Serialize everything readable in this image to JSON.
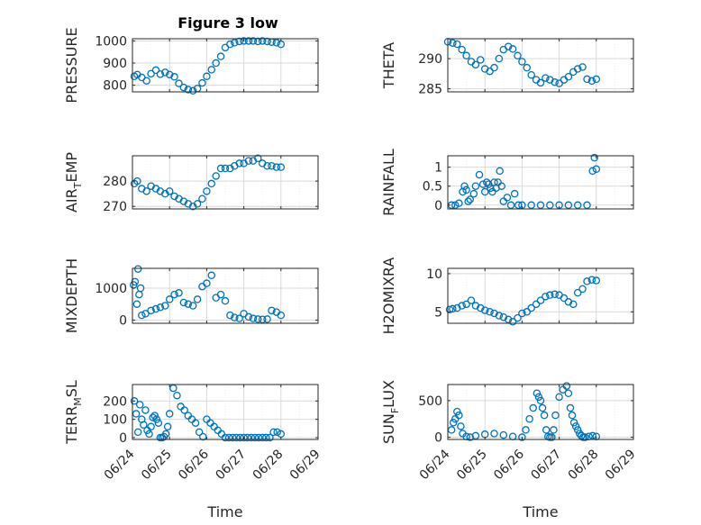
{
  "figure": {
    "title": "Figure 3 low",
    "xlabel": "Time",
    "xticks": [
      "06/24",
      "06/25",
      "06/26",
      "06/27",
      "06/28",
      "06/29"
    ],
    "marker_color": "#0072BD",
    "grid_color": "#d9d9d9"
  },
  "chart_data": [
    {
      "type": "scatter",
      "ylabel_main": "PRESSURE",
      "ylabel_sub": "",
      "yticks": [
        "800",
        "900",
        "1000"
      ],
      "ylim": [
        770,
        1010
      ],
      "yticks_values": [
        800,
        900,
        1000
      ],
      "x_range": [
        0,
        5
      ],
      "grid": true,
      "x": [
        0.05,
        0.13,
        0.25,
        0.38,
        0.5,
        0.63,
        0.75,
        0.88,
        1.0,
        1.13,
        1.25,
        1.38,
        1.5,
        1.63,
        1.75,
        1.88,
        2.0,
        2.13,
        2.25,
        2.38,
        2.5,
        2.63,
        2.75,
        2.88,
        3.0,
        3.13,
        3.25,
        3.38,
        3.5,
        3.63,
        3.75,
        3.88,
        4.0
      ],
      "y": [
        840,
        848,
        835,
        820,
        852,
        868,
        850,
        858,
        848,
        838,
        808,
        790,
        780,
        775,
        785,
        810,
        840,
        870,
        900,
        930,
        970,
        985,
        992,
        998,
        1000,
        1000,
        1000,
        998,
        1000,
        998,
        995,
        992,
        985
      ]
    },
    {
      "type": "scatter",
      "ylabel_main": "THETA",
      "ylabel_sub": "",
      "yticks": [
        "285",
        "290"
      ],
      "ylim": [
        284.5,
        293.3
      ],
      "yticks_values": [
        285,
        290
      ],
      "x_range": [
        0,
        5
      ],
      "grid": true,
      "x": [
        0.0,
        0.13,
        0.25,
        0.38,
        0.5,
        0.63,
        0.75,
        0.88,
        1.0,
        1.13,
        1.25,
        1.38,
        1.5,
        1.63,
        1.75,
        1.88,
        2.0,
        2.13,
        2.25,
        2.38,
        2.5,
        2.63,
        2.75,
        2.88,
        3.0,
        3.13,
        3.25,
        3.38,
        3.5,
        3.63,
        3.75,
        3.88,
        4.0
      ],
      "y": [
        292.8,
        292.6,
        292.4,
        291.5,
        290.5,
        289.5,
        289.0,
        289.8,
        288.3,
        287.9,
        288.5,
        290.0,
        291.5,
        292.0,
        291.6,
        290.5,
        289.5,
        288.5,
        287.3,
        286.5,
        286.0,
        286.8,
        286.5,
        286.1,
        285.9,
        286.5,
        287.0,
        287.8,
        288.3,
        288.6,
        286.6,
        286.3,
        286.6
      ]
    },
    {
      "type": "scatter",
      "ylabel_main": "AIR",
      "ylabel_sub": "T",
      "ylabel_tail": "EMP",
      "yticks": [
        "270",
        "280"
      ],
      "ylim": [
        269,
        290
      ],
      "yticks_values": [
        270,
        280
      ],
      "x_range": [
        0,
        5
      ],
      "grid": true,
      "x": [
        0.05,
        0.13,
        0.25,
        0.38,
        0.5,
        0.63,
        0.75,
        0.88,
        1.0,
        1.13,
        1.25,
        1.38,
        1.5,
        1.63,
        1.75,
        1.88,
        2.0,
        2.13,
        2.25,
        2.38,
        2.5,
        2.63,
        2.75,
        2.88,
        3.0,
        3.13,
        3.25,
        3.38,
        3.5,
        3.63,
        3.75,
        3.88,
        4.0
      ],
      "y": [
        279,
        280,
        277,
        276,
        278,
        277,
        276,
        275,
        276,
        274,
        273,
        272,
        271,
        270,
        271,
        273,
        276,
        279,
        282,
        285,
        285,
        285,
        286,
        287,
        287,
        288,
        288,
        289,
        287,
        286,
        286,
        285.5,
        285.5
      ]
    },
    {
      "type": "scatter",
      "ylabel_main": "RAINFALL",
      "ylabel_sub": "",
      "yticks": [
        "0",
        "0.5",
        "1"
      ],
      "ylim": [
        -0.1,
        1.3
      ],
      "yticks_values": [
        0,
        0.5,
        1
      ],
      "x_range": [
        0,
        5
      ],
      "grid": true,
      "x": [
        0.1,
        0.2,
        0.3,
        0.4,
        0.45,
        0.5,
        0.55,
        0.6,
        0.7,
        0.75,
        0.85,
        0.95,
        1.0,
        1.05,
        1.1,
        1.15,
        1.2,
        1.25,
        1.3,
        1.35,
        1.4,
        1.45,
        1.5,
        1.6,
        1.7,
        1.8,
        1.9,
        2.0,
        2.25,
        2.5,
        2.75,
        3.0,
        3.25,
        3.5,
        3.75,
        3.9,
        3.95,
        4.0
      ],
      "y": [
        0,
        0,
        0.05,
        0.35,
        0.5,
        0.4,
        0.1,
        0.15,
        0.3,
        0.5,
        0.8,
        0.55,
        0.35,
        0.6,
        0.55,
        0.45,
        0.35,
        0.6,
        0.45,
        0.6,
        0.9,
        0.5,
        0.1,
        0.2,
        0,
        0.3,
        0,
        0,
        0,
        0,
        0,
        0,
        0,
        0,
        0,
        0.9,
        1.25,
        0.95
      ]
    },
    {
      "type": "scatter",
      "ylabel_main": "MIXDEPTH",
      "ylabel_sub": "",
      "yticks": [
        "0",
        "1000"
      ],
      "ylim": [
        -100,
        1620
      ],
      "yticks_values": [
        0,
        1000
      ],
      "x_range": [
        0,
        5
      ],
      "grid": true,
      "x": [
        0.03,
        0.07,
        0.12,
        0.15,
        0.18,
        0.22,
        0.25,
        0.35,
        0.5,
        0.63,
        0.75,
        0.88,
        1.0,
        1.13,
        1.25,
        1.38,
        1.5,
        1.63,
        1.75,
        1.88,
        2.0,
        2.13,
        2.25,
        2.38,
        2.5,
        2.63,
        2.75,
        2.88,
        3.0,
        3.13,
        3.25,
        3.38,
        3.5,
        3.63,
        3.75,
        3.88,
        4.0
      ],
      "y": [
        1100,
        1200,
        500,
        1600,
        800,
        1000,
        150,
        200,
        300,
        350,
        400,
        450,
        650,
        800,
        850,
        550,
        500,
        450,
        650,
        1050,
        1150,
        1400,
        700,
        800,
        600,
        150,
        80,
        50,
        200,
        100,
        50,
        30,
        20,
        30,
        300,
        250,
        150
      ]
    },
    {
      "type": "scatter",
      "ylabel_main": "H2OMIXRA",
      "ylabel_sub": "",
      "yticks": [
        "5",
        "10"
      ],
      "ylim": [
        3.5,
        10.7
      ],
      "yticks_values": [
        5,
        10
      ],
      "x_range": [
        0,
        5
      ],
      "grid": true,
      "x": [
        0.05,
        0.13,
        0.25,
        0.38,
        0.5,
        0.63,
        0.75,
        0.88,
        1.0,
        1.13,
        1.25,
        1.38,
        1.5,
        1.63,
        1.75,
        1.88,
        2.0,
        2.13,
        2.25,
        2.38,
        2.5,
        2.63,
        2.75,
        2.88,
        3.0,
        3.13,
        3.25,
        3.38,
        3.5,
        3.63,
        3.75,
        3.88,
        4.0
      ],
      "y": [
        5.3,
        5.4,
        5.5,
        5.8,
        6.0,
        6.5,
        5.8,
        5.5,
        5.2,
        5.0,
        4.8,
        4.5,
        4.3,
        4.0,
        3.7,
        4.2,
        4.8,
        5.0,
        5.5,
        6.0,
        6.5,
        7.0,
        7.2,
        7.3,
        7.2,
        6.8,
        6.3,
        6.0,
        7.5,
        8.0,
        9.0,
        9.2,
        9.1
      ]
    },
    {
      "type": "scatter",
      "ylabel_main": "TERR",
      "ylabel_sub": "M",
      "ylabel_tail": "SL",
      "yticks": [
        "0",
        "100",
        "200"
      ],
      "ylim": [
        -10,
        290
      ],
      "yticks_values": [
        0,
        100,
        200
      ],
      "x_range": [
        0,
        5
      ],
      "grid": true,
      "x": [
        0.05,
        0.1,
        0.15,
        0.2,
        0.25,
        0.3,
        0.35,
        0.4,
        0.45,
        0.5,
        0.55,
        0.6,
        0.65,
        0.7,
        0.75,
        0.8,
        0.85,
        0.9,
        0.95,
        1.0,
        1.1,
        1.2,
        1.3,
        1.4,
        1.5,
        1.6,
        1.7,
        1.8,
        1.9,
        2.0,
        2.1,
        2.2,
        2.3,
        2.4,
        2.5,
        2.6,
        2.7,
        2.8,
        2.9,
        3.0,
        3.1,
        3.2,
        3.3,
        3.4,
        3.5,
        3.6,
        3.7,
        3.8,
        3.9,
        4.0
      ],
      "y": [
        200,
        130,
        30,
        180,
        100,
        70,
        150,
        40,
        20,
        60,
        110,
        120,
        100,
        80,
        0,
        0,
        5,
        20,
        60,
        130,
        270,
        230,
        170,
        150,
        120,
        100,
        80,
        30,
        5,
        100,
        80,
        60,
        40,
        20,
        0,
        0,
        0,
        0,
        0,
        0,
        0,
        0,
        0,
        0,
        0,
        0,
        0,
        30,
        30,
        20
      ]
    },
    {
      "type": "scatter",
      "ylabel_main": "SUN",
      "ylabel_sub": "F",
      "ylabel_tail": "LUX",
      "yticks": [
        "0",
        "500"
      ],
      "ylim": [
        -30,
        720
      ],
      "yticks_values": [
        0,
        500
      ],
      "x_range": [
        0,
        5
      ],
      "grid": true,
      "x": [
        0.1,
        0.15,
        0.2,
        0.25,
        0.3,
        0.35,
        0.4,
        0.5,
        0.6,
        0.75,
        1.0,
        1.25,
        1.5,
        1.75,
        2.0,
        2.1,
        2.2,
        2.3,
        2.4,
        2.45,
        2.5,
        2.55,
        2.6,
        2.65,
        2.7,
        2.75,
        2.8,
        2.85,
        2.9,
        3.0,
        3.1,
        3.2,
        3.25,
        3.3,
        3.35,
        3.4,
        3.45,
        3.5,
        3.55,
        3.6,
        3.65,
        3.7,
        3.8,
        3.9,
        4.0
      ],
      "y": [
        100,
        200,
        250,
        350,
        300,
        150,
        50,
        10,
        0,
        20,
        40,
        50,
        30,
        10,
        0,
        100,
        250,
        400,
        600,
        550,
        500,
        400,
        300,
        100,
        10,
        0,
        0,
        100,
        300,
        550,
        650,
        700,
        600,
        400,
        300,
        200,
        150,
        100,
        50,
        20,
        0,
        0,
        10,
        20,
        10
      ]
    }
  ]
}
